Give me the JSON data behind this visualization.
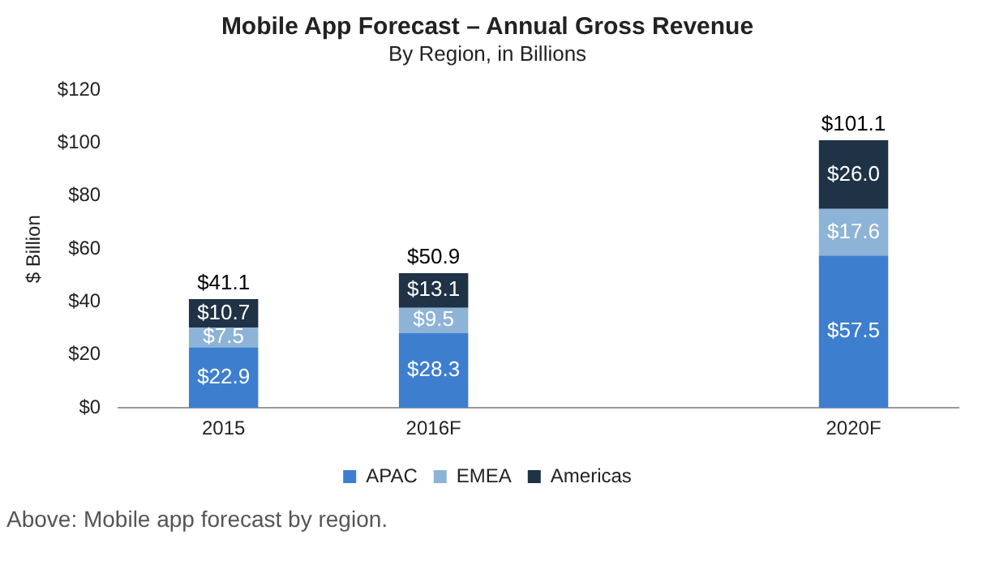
{
  "chart_data": {
    "type": "bar",
    "stacked": true,
    "title": "Mobile App Forecast – Annual Gross Revenue",
    "subtitle": "By Region, in Billions",
    "ylabel": "$ Billion",
    "categories": [
      "2015",
      "2016F",
      null,
      "2020F"
    ],
    "series": [
      {
        "name": "APAC",
        "color": "#3d7fce",
        "values": [
          22.9,
          28.3,
          null,
          57.5
        ],
        "value_labels": [
          "$22.9",
          "$28.3",
          null,
          "$57.5"
        ]
      },
      {
        "name": "EMEA",
        "color": "#8db3d7",
        "values": [
          7.5,
          9.5,
          null,
          17.6
        ],
        "value_labels": [
          "$7.5",
          "$9.5",
          null,
          "$17.6"
        ]
      },
      {
        "name": "Americas",
        "color": "#1f3246",
        "values": [
          10.7,
          13.1,
          null,
          26.0
        ],
        "value_labels": [
          "$10.7",
          "$13.1",
          null,
          "$26.0"
        ]
      }
    ],
    "totals": [
      "$41.1",
      "$50.9",
      null,
      "$101.1"
    ],
    "ylim": [
      0,
      120
    ],
    "yticks": [
      {
        "value": 0,
        "label": "$0"
      },
      {
        "value": 20,
        "label": "$20"
      },
      {
        "value": 40,
        "label": "$40"
      },
      {
        "value": 60,
        "label": "$60"
      },
      {
        "value": 80,
        "label": "$80"
      },
      {
        "value": 100,
        "label": "$100"
      },
      {
        "value": 120,
        "label": "$120"
      }
    ],
    "grid": false,
    "legend": "bottom",
    "annotations": [
      "Above: Mobile app forecast by region."
    ]
  }
}
